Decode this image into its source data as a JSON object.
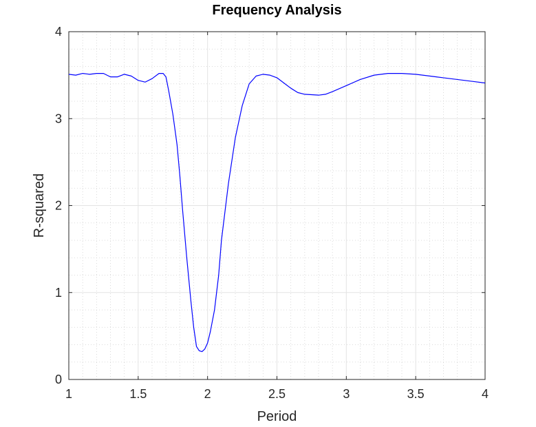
{
  "chart_data": {
    "type": "line",
    "title": "Frequency Analysis",
    "xlabel": "Period",
    "ylabel": "R-squared",
    "xlim": [
      1,
      4
    ],
    "ylim": [
      0,
      4
    ],
    "x_ticks": [
      "1",
      "1.5",
      "2",
      "2.5",
      "3",
      "3.5",
      "4"
    ],
    "y_ticks": [
      "0",
      "1",
      "2",
      "3",
      "4"
    ],
    "grid": "major and minor",
    "series": [
      {
        "color": "#0000ff",
        "x": [
          1.0,
          1.05,
          1.1,
          1.15,
          1.2,
          1.25,
          1.3,
          1.35,
          1.4,
          1.45,
          1.5,
          1.55,
          1.6,
          1.65,
          1.68,
          1.7,
          1.72,
          1.75,
          1.78,
          1.8,
          1.82,
          1.85,
          1.88,
          1.9,
          1.92,
          1.94,
          1.96,
          1.98,
          2.0,
          2.02,
          2.05,
          2.08,
          2.1,
          2.15,
          2.2,
          2.25,
          2.3,
          2.35,
          2.4,
          2.45,
          2.5,
          2.55,
          2.6,
          2.65,
          2.7,
          2.8,
          2.85,
          2.9,
          3.0,
          3.1,
          3.2,
          3.3,
          3.4,
          3.5,
          3.6,
          3.7,
          3.8,
          3.9,
          4.0
        ],
        "y": [
          3.51,
          3.5,
          3.52,
          3.51,
          3.52,
          3.52,
          3.48,
          3.48,
          3.51,
          3.49,
          3.44,
          3.42,
          3.46,
          3.52,
          3.52,
          3.48,
          3.32,
          3.05,
          2.7,
          2.35,
          1.95,
          1.4,
          0.9,
          0.6,
          0.38,
          0.33,
          0.32,
          0.35,
          0.42,
          0.55,
          0.8,
          1.2,
          1.6,
          2.25,
          2.78,
          3.15,
          3.4,
          3.49,
          3.51,
          3.5,
          3.47,
          3.41,
          3.35,
          3.3,
          3.28,
          3.27,
          3.28,
          3.31,
          3.38,
          3.45,
          3.5,
          3.52,
          3.52,
          3.51,
          3.49,
          3.47,
          3.45,
          3.43,
          3.41
        ]
      }
    ]
  }
}
